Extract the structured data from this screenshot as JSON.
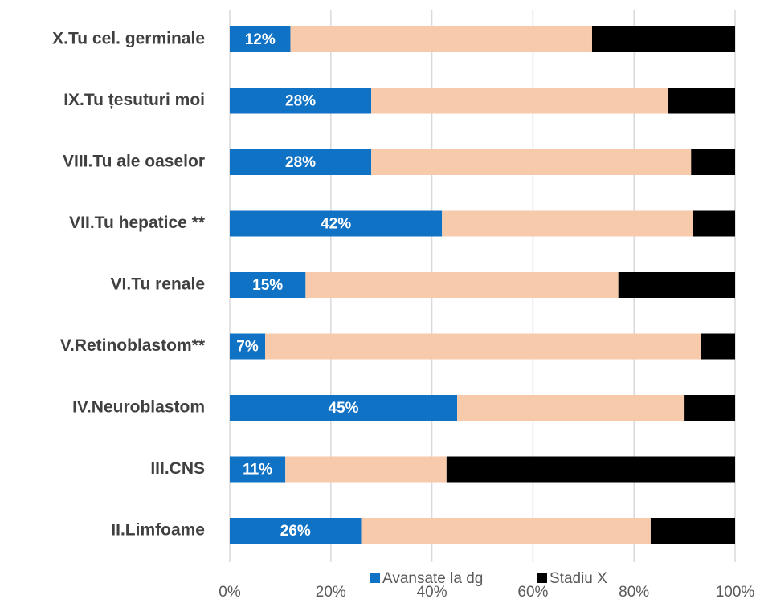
{
  "chart_data": {
    "type": "stacked_barh",
    "categories": [
      "X.Tu cel. germinale",
      "IX.Tu  țesuturi moi",
      "VIII.Tu ale oaselor",
      "VII.Tu hepatice **",
      "VI.Tu renale",
      "V.Retinoblastom**",
      "IV.Neuroblastom",
      "III.CNS",
      "II.Limfoame"
    ],
    "series": [
      {
        "name": "Avansate la dg",
        "color": "#0f72c4",
        "values": [
          12,
          28,
          28,
          42,
          15,
          7,
          45,
          11,
          26
        ],
        "value_labels": [
          "12%",
          "28%",
          "28%",
          "42%",
          "15%",
          "7%",
          "45%",
          "11%",
          "26%"
        ]
      },
      {
        "color": "#f7caac",
        "values": [
          59.7,
          58.8,
          63.3,
          49.6,
          61.9,
          86.2,
          45,
          31.9,
          57.3
        ]
      },
      {
        "name": "Stadiu X",
        "color": "#000000",
        "values": [
          28.3,
          13.2,
          8.7,
          8.4,
          23.1,
          6.8,
          10,
          57.1,
          16.7
        ]
      }
    ],
    "xlim": [
      0,
      100
    ],
    "xticks": [
      {
        "value": 0,
        "label": "0%"
      },
      {
        "value": 20,
        "label": "20%"
      },
      {
        "value": 40,
        "label": "40%"
      },
      {
        "value": 60,
        "label": "60%"
      },
      {
        "value": 80,
        "label": "80%"
      },
      {
        "value": 100,
        "label": "100%"
      }
    ],
    "grid": true
  }
}
